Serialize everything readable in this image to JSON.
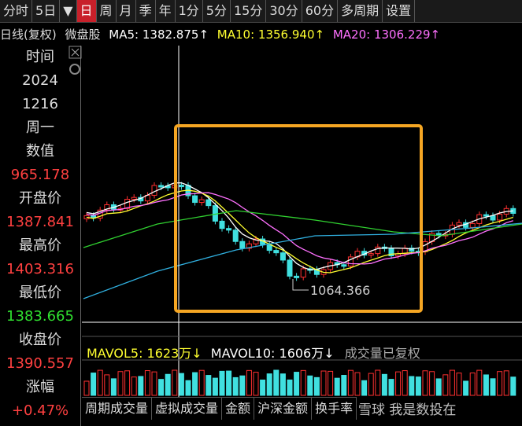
{
  "tabs": [
    "分时",
    "5日",
    "▼",
    "日",
    "周",
    "月",
    "季",
    "年",
    "1分",
    "5分",
    "15分",
    "30分",
    "60分",
    "多周期",
    "设置"
  ],
  "selected_tab": "日",
  "info": {
    "chart_label": "日线(复权)",
    "symbol": "微盘股",
    "ma5": "MA5: 1382.875↑",
    "ma10": "MA10: 1356.940↑",
    "ma20": "MA20: 1306.229↑"
  },
  "left_panel": [
    {
      "label": "时间"
    },
    {
      "label": "2024"
    },
    {
      "label": "1216"
    },
    {
      "label": "周一"
    },
    {
      "label": "数值"
    },
    {
      "label": "965.178",
      "tone": "red"
    },
    {
      "label": "开盘价"
    },
    {
      "label": "1387.841",
      "tone": "red"
    },
    {
      "label": "最高价"
    },
    {
      "label": "1403.316",
      "tone": "red"
    },
    {
      "label": "最低价"
    },
    {
      "label": "1383.665",
      "tone": "green"
    },
    {
      "label": "收盘价"
    },
    {
      "label": "1390.557",
      "tone": "red"
    },
    {
      "label": "涨幅"
    },
    {
      "label": "+0.47%",
      "tone": "red"
    }
  ],
  "annotation": "1064.366",
  "volume": {
    "mavol5": "MAVOL5: 1623万↓",
    "mavol10": "MAVOL10: 1606万↓",
    "note": "成交量已复权"
  },
  "bottom_tabs": [
    "周期成交量",
    "虚拟成交量",
    "金额",
    "沪深金额",
    "换手率"
  ],
  "watermark": "雪球 我是数投在"
}
